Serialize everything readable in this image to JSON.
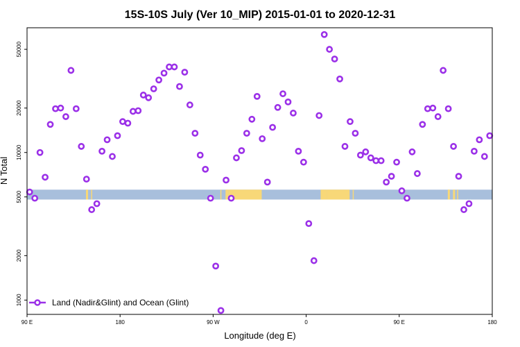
{
  "chart_data": {
    "type": "scatter",
    "title": "15S-10S July (Ver 10_MIP)   2015-01-01 to 2020-12-31",
    "xlabel": "Longitude (deg E)",
    "ylabel": "N Total",
    "y_scale": "log",
    "ylim": [
      800,
      70000
    ],
    "xlim": [
      90,
      540
    ],
    "x_ticks": [
      {
        "value": 90,
        "label": "90 E"
      },
      {
        "value": 180,
        "label": "180"
      },
      {
        "value": 270,
        "label": "90 W"
      },
      {
        "value": 360,
        "label": "0"
      },
      {
        "value": 450,
        "label": "90 E"
      },
      {
        "value": 540,
        "label": "180"
      }
    ],
    "y_ticks": [
      {
        "value": 1000,
        "label": "1000"
      },
      {
        "value": 2000,
        "label": "2000"
      },
      {
        "value": 5000,
        "label": "5000"
      },
      {
        "value": 10000,
        "label": "10000"
      },
      {
        "value": 20000,
        "label": "20000"
      },
      {
        "value": 50000,
        "label": "50000"
      }
    ],
    "legend": {
      "position": "bottom-left",
      "entries": [
        "Land (Nadir&Glint) and Ocean (Glint)"
      ]
    },
    "series": [
      {
        "name": "Land (Nadir&Glint) and Ocean (Glint)",
        "color": "#9b30e8",
        "x": [
          92.5,
          97.5,
          102.5,
          107.5,
          112.5,
          117.5,
          122.5,
          127.5,
          132.5,
          137.5,
          142.5,
          147.5,
          152.5,
          157.5,
          162.5,
          167.5,
          172.5,
          177.5,
          182.5,
          187.5,
          192.5,
          197.5,
          202.5,
          207.5,
          212.5,
          217.5,
          222.5,
          227.5,
          232.5,
          237.5,
          242.5,
          247.5,
          252.5,
          257.5,
          262.5,
          267.5,
          272.5,
          277.5,
          282.5,
          287.5,
          292.5,
          297.5,
          302.5,
          307.5,
          312.5,
          317.5,
          322.5,
          327.5,
          332.5,
          337.5,
          342.5,
          347.5,
          352.5,
          357.5,
          362.5,
          367.5,
          372.5,
          377.5,
          382.5,
          387.5,
          392.5,
          397.5,
          402.5,
          407.5,
          412.5,
          417.5,
          422.5,
          427.5,
          432.5,
          437.5,
          442.5,
          447.5,
          452.5,
          457.5,
          462.5,
          467.5,
          472.5,
          477.5,
          482.5,
          487.5,
          492.5,
          497.5,
          502.5,
          507.5,
          512.5,
          517.5,
          522.5,
          527.5,
          532.5,
          537.5
        ],
        "y": [
          5400,
          4900,
          10000,
          6800,
          15500,
          19800,
          20000,
          17500,
          36000,
          19800,
          11000,
          6600,
          4100,
          4500,
          10200,
          12200,
          9400,
          13000,
          16200,
          15800,
          19000,
          19200,
          24500,
          23500,
          27000,
          31000,
          34500,
          38000,
          38000,
          28000,
          35000,
          21000,
          13500,
          9600,
          7700,
          4900,
          1700,
          850,
          6500,
          4900,
          9200,
          10300,
          13500,
          16800,
          24000,
          12400,
          6300,
          14800,
          20200,
          25000,
          22000,
          18500,
          10200,
          8600,
          3300,
          1850,
          17800,
          63000,
          50000,
          43000,
          31500,
          11000,
          16200,
          13500,
          9600,
          10100,
          9200,
          8800,
          8800,
          6300,
          6900,
          8600,
          5500,
          4900,
          10100,
          7200,
          15500,
          19800,
          20000,
          17500,
          36000,
          19800,
          11000,
          6900,
          4100,
          4500,
          10200,
          12200,
          9400,
          13000
        ]
      }
    ],
    "background_band": {
      "y_range": [
        4800,
        5600
      ],
      "ocean_color": "#a8bfdc",
      "land_color": "#f8d878",
      "land_segments_x": [
        [
          147,
          149
        ],
        [
          152,
          153
        ],
        [
          277,
          278
        ],
        [
          282,
          285
        ],
        [
          285,
          317
        ],
        [
          374,
          380
        ],
        [
          380,
          402
        ],
        [
          405,
          406
        ],
        [
          497,
          499
        ],
        [
          502,
          504
        ],
        [
          506,
          507
        ]
      ]
    }
  }
}
